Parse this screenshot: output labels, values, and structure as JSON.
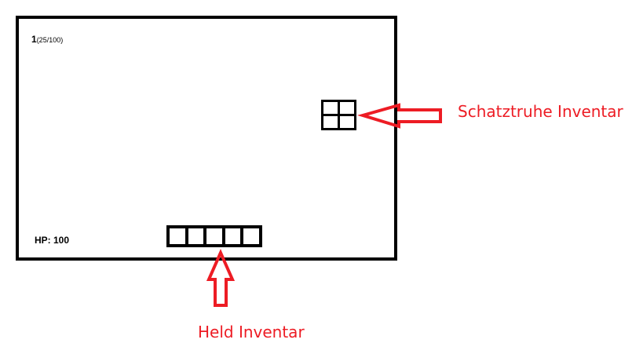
{
  "hud": {
    "level": "1",
    "xp": "(25/100)",
    "hp": "HP: 100"
  },
  "chest_inventory": {
    "label": "Schatztruhe Inventar",
    "slots": 4
  },
  "hero_inventory": {
    "label": "Held Inventar",
    "slots": 5
  },
  "colors": {
    "annotation": "#ed1c24",
    "outline": "#000000"
  }
}
